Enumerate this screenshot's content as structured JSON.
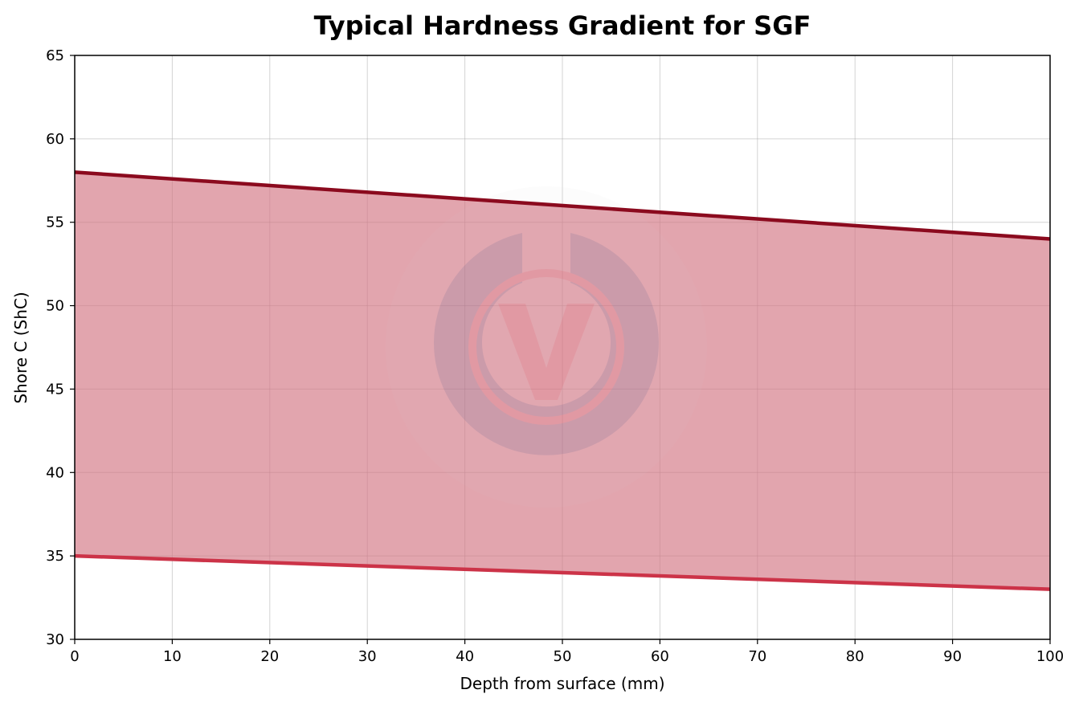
{
  "chart_data": {
    "type": "area",
    "title": "Typical Hardness Gradient for SGF",
    "xlabel": "Depth from surface (mm)",
    "ylabel": "Shore C (ShC)",
    "xlim": [
      0,
      100
    ],
    "ylim": [
      30,
      65
    ],
    "xticks": [
      "0",
      "10",
      "20",
      "30",
      "40",
      "50",
      "60",
      "70",
      "80",
      "90",
      "100"
    ],
    "yticks": [
      "30",
      "35",
      "40",
      "45",
      "50",
      "55",
      "60",
      "65"
    ],
    "grid": true,
    "series": [
      {
        "role": "upper",
        "color": "#8b0a1e",
        "x": [
          0,
          100
        ],
        "values": [
          58,
          54
        ]
      },
      {
        "role": "lower",
        "color": "#cc3348",
        "x": [
          0,
          100
        ],
        "values": [
          35,
          33
        ]
      }
    ],
    "fill_color": "#d27482",
    "watermark_icon": "v-logo-watermark"
  }
}
